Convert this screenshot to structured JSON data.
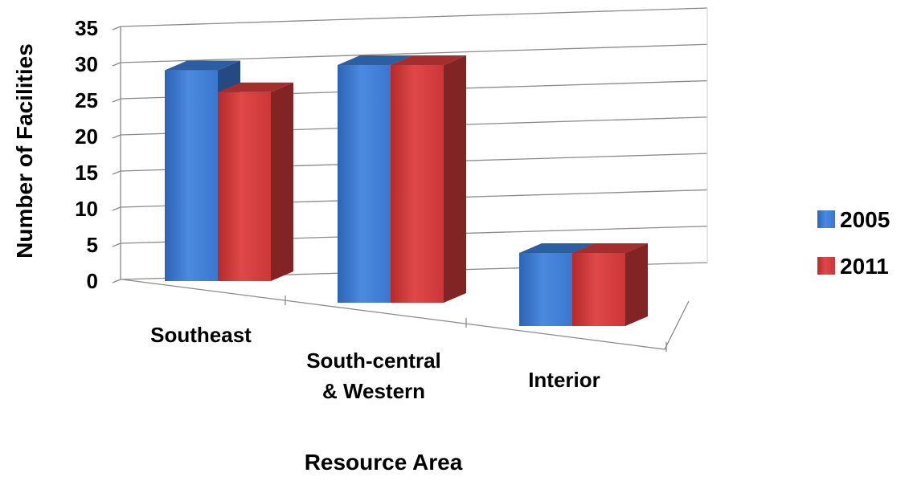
{
  "chart_data": {
    "type": "bar",
    "style": "3d-clustered-column",
    "categories": [
      "Southeast",
      "South-central\n& Western",
      "Interior"
    ],
    "series": [
      {
        "name": "2005",
        "values": [
          29,
          31,
          10
        ],
        "color": "#3b78d0"
      },
      {
        "name": "2011",
        "values": [
          26,
          31,
          10
        ],
        "color": "#d23a3a"
      }
    ],
    "xlabel": "Resource Area",
    "ylabel": "Number of Facilities",
    "ylim": [
      0,
      35
    ],
    "yticks": [
      0,
      5,
      10,
      15,
      20,
      25,
      30,
      35
    ],
    "grid": true,
    "legend": "right"
  }
}
